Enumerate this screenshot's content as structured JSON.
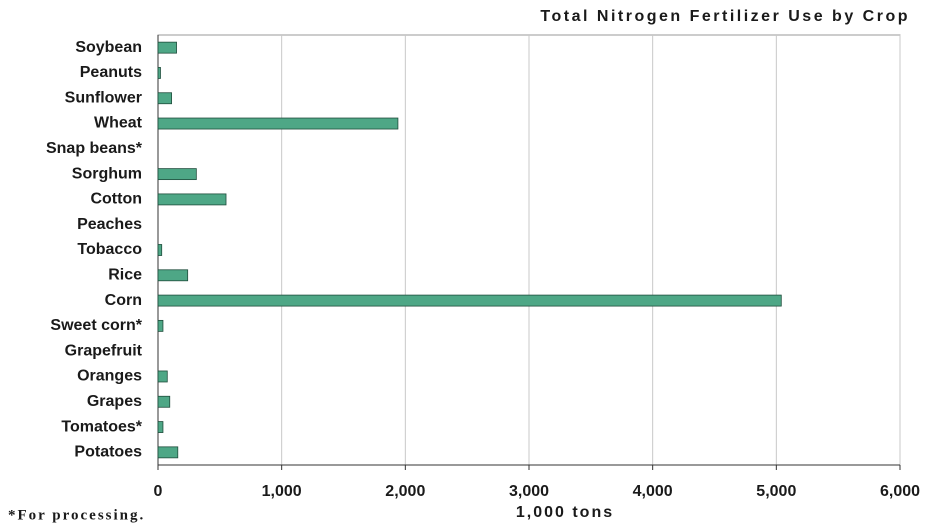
{
  "chart_data": {
    "type": "bar",
    "orientation": "horizontal",
    "title": "Total Nitrogen Fertilizer Use by Crop",
    "xlabel": "1,000 tons",
    "footnote": "*For processing.",
    "categories": [
      "Soybean",
      "Peanuts",
      "Sunflower",
      "Wheat",
      "Snap beans*",
      "Sorghum",
      "Cotton",
      "Peaches",
      "Tobacco",
      "Rice",
      "Corn",
      "Sweet corn*",
      "Grapefruit",
      "Oranges",
      "Grapes",
      "Tomatoes*",
      "Potatoes"
    ],
    "values": [
      150,
      20,
      110,
      1940,
      0,
      310,
      550,
      0,
      30,
      240,
      5040,
      40,
      0,
      75,
      95,
      40,
      160
    ],
    "color": "#4ea786",
    "xlim": [
      0,
      6000
    ],
    "xticks": [
      0,
      {
        "value": 1000,
        "label": "1,000"
      },
      {
        "value": 2000,
        "label": "2,000"
      },
      {
        "value": 3000,
        "label": "3,000"
      },
      {
        "value": 4000,
        "label": "4,000"
      },
      {
        "value": 5000,
        "label": "5,000"
      },
      {
        "value": 6000,
        "label": "6,000"
      }
    ],
    "grid": true
  }
}
